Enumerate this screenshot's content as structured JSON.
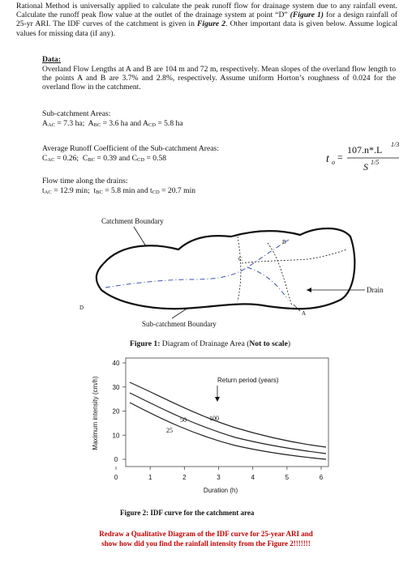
{
  "intro": {
    "text_1": "Rational Method is universally applied to calculate the peak runoff flow for drainage system due to any rainfall event. Calculate the runoff peak flow value at the outlet of the drainage system at point “D” ",
    "figure_1_ref": "(Figure 1)",
    "text_2": " for a design rainfall of 25-yr ARI. The IDF curves of the catchment is given in ",
    "figure_2_ref": "Figure 2",
    "text_3": ". Other important data is given below. Assume logical values for missing data (if any)."
  },
  "data": {
    "heading": "Data:",
    "paragraph": "Overland Flow Lengths at A and B are 104 m and 72 m, respectively. Mean slopes of the overland flow length to the points A and B are 3.7% and 2.8%, respectively. Assume uniform Horton’s roughness of 0.024 for the overland flow in the catchment.",
    "areas_heading": "Sub-catchment Areas:",
    "areas": [
      {
        "symbol": "A",
        "sub": "AC",
        "rest": " = 7.3 ha;  "
      },
      {
        "symbol": "A",
        "sub": "BC",
        "rest": " = 3.6 ha and "
      },
      {
        "symbol": "A",
        "sub": "CD",
        "rest": " = 5.8 ha"
      }
    ],
    "runoff_heading": "Average Runoff Coefficient of the Sub-catchment Areas:",
    "runoff": [
      {
        "symbol": "C",
        "sub": "AC",
        "rest": " = 0.26;  "
      },
      {
        "symbol": "C",
        "sub": "BC",
        "rest": " = 0.39 and "
      },
      {
        "symbol": "C",
        "sub": "CD",
        "rest": " = 0.58"
      }
    ],
    "flow_heading": "Flow time along the drains:",
    "flow": [
      {
        "symbol": "t",
        "sub": "AC",
        "rest": " = 12.9 min;  "
      },
      {
        "symbol": "t",
        "sub": "BC",
        "rest": " = 5.8 min and "
      },
      {
        "symbol": "t",
        "sub": "CD",
        "rest": " = 20.7 min"
      }
    ],
    "formula": {
      "lhs": "t",
      "lhs_sub": "o",
      "equals": "=",
      "numerator": "107.n*.L",
      "numerator_exp": "1/3",
      "denominator": "S",
      "denominator_exp": "1/5"
    }
  },
  "figure_1": {
    "catchment_boundary": "Catchment Boundary",
    "point_a": "A",
    "point_b": "B",
    "point_c": "C",
    "point_d": "D",
    "drain": "Drain",
    "sub_catchment_boundary": "Sub-catchment Boundary",
    "caption_label": "Figure 1:",
    "caption_text": " Diagram of Drainage Area (",
    "caption_note": "Not to scale",
    "caption_end": ")"
  },
  "figure_2": {
    "y_label": "Maximum intensity (cm/h)",
    "x_label": "Duration (h)",
    "legend_title": "Return period (years)",
    "curve_labels": [
      "25",
      "50",
      "100"
    ],
    "xlim": [
      0,
      6
    ],
    "xticks": [
      0,
      1,
      2,
      3,
      4,
      5,
      6
    ],
    "ylim": [
      0,
      40
    ],
    "yticks": [
      0,
      10,
      20,
      30,
      40
    ],
    "caption": "Figure 2: IDF curve for the catchment area"
  },
  "task": {
    "line_1": "Redraw a Qualitative Diagram of the IDF curve for 25-year ARI and",
    "line_2": "show how did you find the rainfall intensity from the Figure 2!!!!!!!"
  }
}
